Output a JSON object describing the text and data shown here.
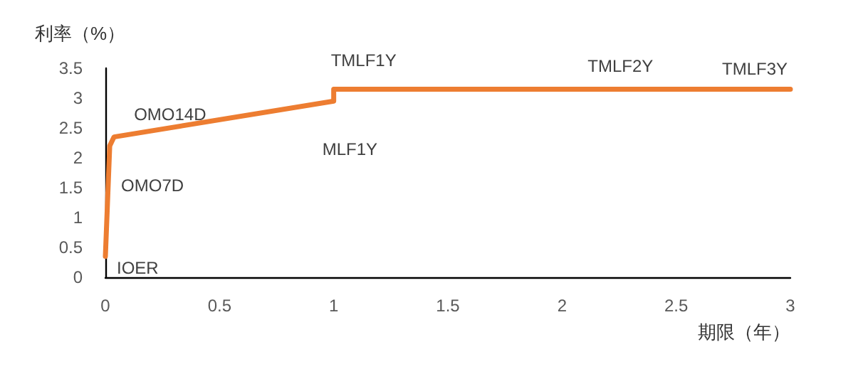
{
  "chart_data": {
    "type": "line",
    "ylabel": "利率（%）",
    "xlabel": "期限（年）",
    "x": [
      0,
      0.019,
      0.038,
      1,
      1,
      2,
      3
    ],
    "series": [
      {
        "color": "#ed7d31",
        "values": [
          0.35,
          2.2,
          2.35,
          2.95,
          3.15,
          3.15,
          3.15
        ]
      }
    ],
    "xlim": [
      0,
      3
    ],
    "xticks": [
      0,
      0.5,
      1,
      1.5,
      2,
      2.5,
      3
    ],
    "ylim": [
      0,
      3.5
    ],
    "yticks": [
      0,
      0.5,
      1,
      1.5,
      2,
      2.5,
      3,
      3.5
    ],
    "grid": false,
    "marker": "none",
    "line_style": "solid",
    "annotations": [
      {
        "text": "IOER",
        "x": 0,
        "y": 0.35
      },
      {
        "text": "OMO7D",
        "x": 0.019,
        "y": 2.2
      },
      {
        "text": "OMO14D",
        "x": 0.038,
        "y": 2.35
      },
      {
        "text": "MLF1Y",
        "x": 1,
        "y": 2.95
      },
      {
        "text": "TMLF1Y",
        "x": 1,
        "y": 3.15
      },
      {
        "text": "TMLF2Y",
        "x": 2,
        "y": 3.15
      },
      {
        "text": "TMLF3Y",
        "x": 3,
        "y": 3.15
      }
    ]
  }
}
